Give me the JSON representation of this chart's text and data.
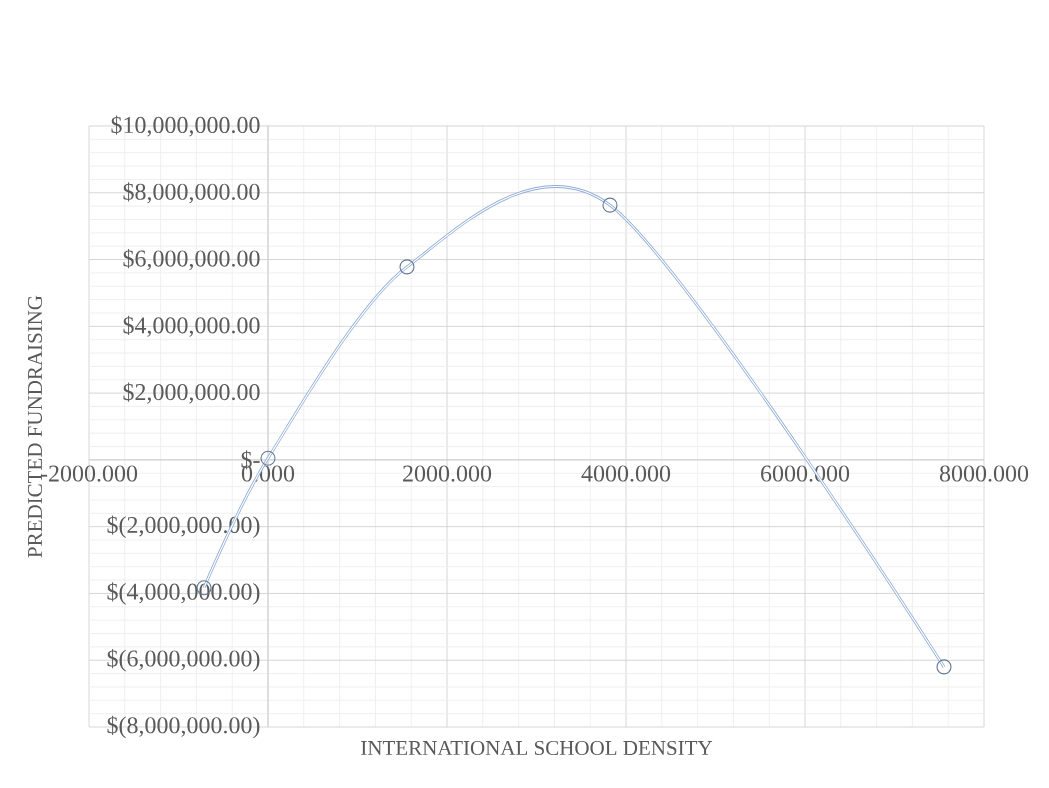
{
  "chart_data": {
    "type": "line",
    "xlabel": "INTERNATIONAL SCHOOL DENSITY",
    "ylabel": "PREDICTED FUNDRAISING",
    "x": [
      -715,
      0,
      1553,
      3821,
      7553
    ],
    "series": [
      {
        "color": "#8eacd6",
        "values": [
          -3830000,
          50000,
          5780000,
          7630000,
          -6200000
        ]
      }
    ],
    "xlim": [
      -2000,
      8000
    ],
    "ylim": [
      -8000000,
      10000000
    ],
    "xticks": [
      {
        "value": -2000,
        "label": "-2000.000"
      },
      {
        "value": 0,
        "label": "0.000"
      },
      {
        "value": 2000,
        "label": "2000.000"
      },
      {
        "value": 4000,
        "label": "4000.000"
      },
      {
        "value": 6000,
        "label": "6000.000"
      },
      {
        "value": 8000,
        "label": "8000.000"
      }
    ],
    "yticks": [
      {
        "value": -8000000,
        "label": "$(8,000,000.00)"
      },
      {
        "value": -6000000,
        "label": "$(6,000,000.00)"
      },
      {
        "value": -4000000,
        "label": "$(4,000,000.00)"
      },
      {
        "value": -2000000,
        "label": "$(2,000,000.00)"
      },
      {
        "value": 0,
        "label": "$-"
      },
      {
        "value": 2000000,
        "label": "$2,000,000.00"
      },
      {
        "value": 4000000,
        "label": "$4,000,000.00"
      },
      {
        "value": 6000000,
        "label": "$6,000,000.00"
      },
      {
        "value": 8000000,
        "label": "$8,000,000.00"
      },
      {
        "value": 10000000,
        "label": "$10,000,000.00"
      }
    ],
    "grid": true,
    "marker": "circle",
    "line_style": "solid"
  }
}
